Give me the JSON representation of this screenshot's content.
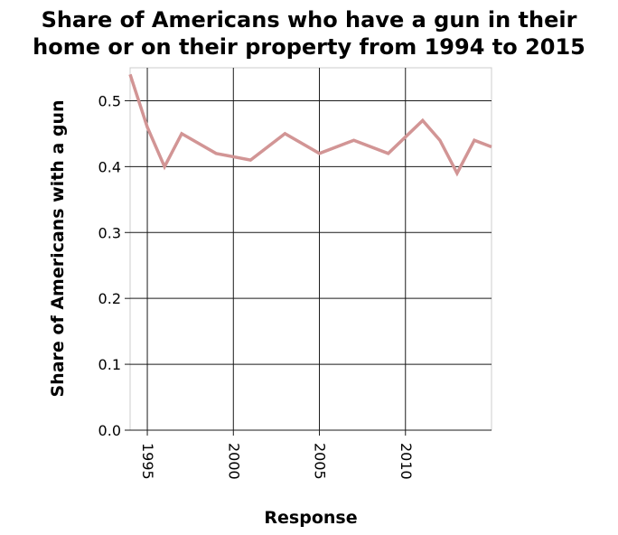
{
  "chart_data": {
    "type": "line",
    "title_lines": [
      "Share of Americans who have a gun in their",
      "home or on their property from 1994 to 2015"
    ],
    "xlabel": "Response",
    "ylabel": "Share of Americans with a gun",
    "xlim": [
      1994,
      2015
    ],
    "ylim": [
      0.0,
      0.55
    ],
    "x_ticks": [
      1995,
      2000,
      2005,
      2010
    ],
    "x_tick_labels": [
      "1995",
      "2000",
      "2005",
      "2010"
    ],
    "y_ticks": [
      0.0,
      0.1,
      0.2,
      0.3,
      0.4,
      0.5
    ],
    "y_tick_labels": [
      "0.0",
      "0.1",
      "0.2",
      "0.3",
      "0.4",
      "0.5"
    ],
    "grid": true,
    "line_color": "#d29595",
    "series": [
      {
        "x": [
          1994,
          1995,
          1996,
          1997,
          1999,
          2001,
          2003,
          2005,
          2007,
          2009,
          2011,
          2012,
          2013,
          2014,
          2015
        ],
        "values": [
          0.54,
          0.46,
          0.4,
          0.45,
          0.42,
          0.41,
          0.45,
          0.42,
          0.44,
          0.42,
          0.47,
          0.44,
          0.39,
          0.44,
          0.43
        ]
      }
    ]
  }
}
